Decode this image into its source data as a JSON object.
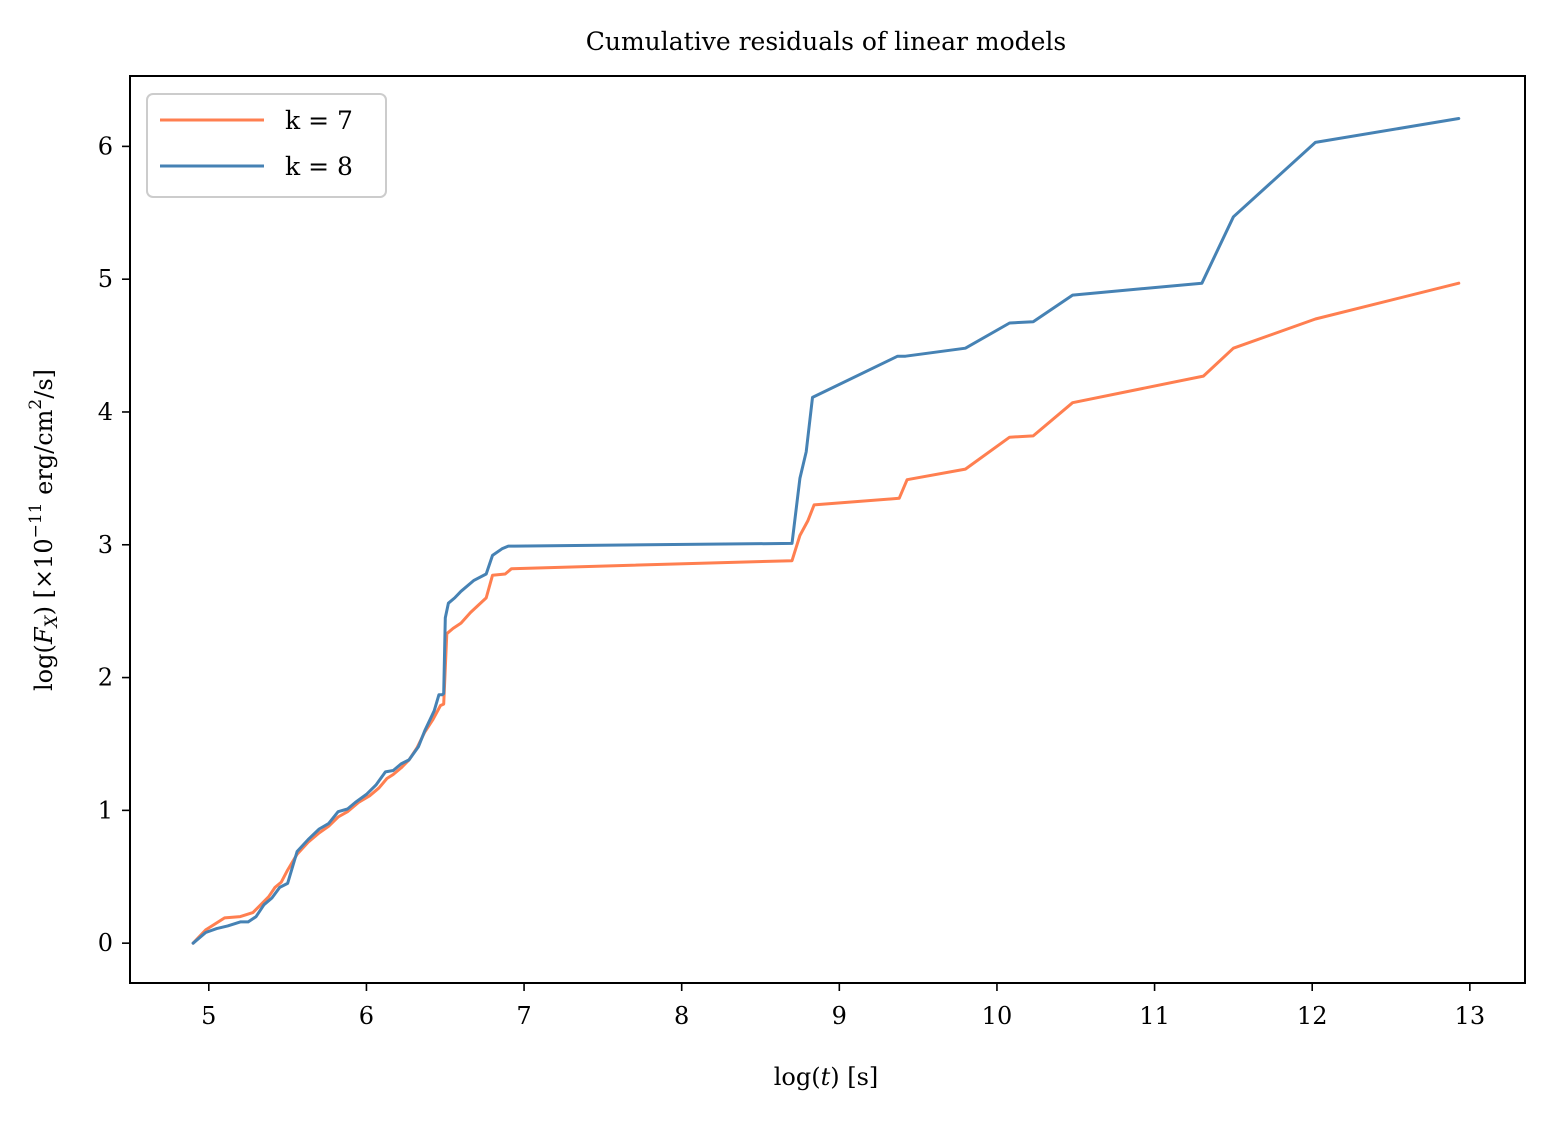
{
  "chart_data": {
    "type": "line",
    "title": "Cumulative residuals of linear models",
    "xlabel": "log(t) [s]",
    "ylabel": "log(F_X) [×10^−11 erg/cm²/s]",
    "ylabel_parts": {
      "p1": "log(",
      "p2": "F",
      "p3": "X",
      "p4": ") [×10",
      "p5": "−11",
      "p6": " erg/cm",
      "p7": "2",
      "p8": "/s]"
    },
    "xlabel_parts": {
      "p1": "log(",
      "p2": "t",
      "p3": ") [s]"
    },
    "xlim": [
      4.5,
      13.35
    ],
    "ylim": [
      -0.3,
      6.53
    ],
    "xticks": [
      5,
      6,
      7,
      8,
      9,
      10,
      11,
      12,
      13
    ],
    "yticks": [
      0,
      1,
      2,
      3,
      4,
      5,
      6
    ],
    "grid": false,
    "legend_position": "top-left",
    "series": [
      {
        "name": "k = 7",
        "color": "#ff7f50",
        "x": [
          4.9,
          4.98,
          5.1,
          5.2,
          5.28,
          5.33,
          5.38,
          5.42,
          5.46,
          5.5,
          5.56,
          5.63,
          5.7,
          5.76,
          5.82,
          5.88,
          5.95,
          6.02,
          6.08,
          6.13,
          6.17,
          6.22,
          6.27,
          6.32,
          6.37,
          6.42,
          6.47,
          6.49,
          6.51,
          6.55,
          6.6,
          6.66,
          6.76,
          6.8,
          6.88,
          6.92,
          8.7,
          8.75,
          8.8,
          8.84,
          9.38,
          9.43,
          9.8,
          10.08,
          10.23,
          10.48,
          11.31,
          11.5,
          12.02,
          12.93
        ],
        "y": [
          0.0,
          0.1,
          0.19,
          0.2,
          0.23,
          0.29,
          0.35,
          0.42,
          0.46,
          0.55,
          0.67,
          0.76,
          0.83,
          0.88,
          0.95,
          0.99,
          1.06,
          1.11,
          1.17,
          1.24,
          1.27,
          1.32,
          1.38,
          1.47,
          1.59,
          1.68,
          1.79,
          1.8,
          2.33,
          2.37,
          2.41,
          2.49,
          2.6,
          2.77,
          2.78,
          2.82,
          2.88,
          3.07,
          3.18,
          3.3,
          3.35,
          3.49,
          3.57,
          3.81,
          3.82,
          4.07,
          4.27,
          4.48,
          4.7,
          4.97
        ]
      },
      {
        "name": "k = 8",
        "color": "#4682b4",
        "x": [
          4.9,
          4.98,
          5.05,
          5.12,
          5.2,
          5.25,
          5.3,
          5.35,
          5.4,
          5.45,
          5.5,
          5.56,
          5.63,
          5.7,
          5.76,
          5.82,
          5.88,
          5.93,
          6.0,
          6.06,
          6.12,
          6.17,
          6.22,
          6.27,
          6.33,
          6.37,
          6.43,
          6.46,
          6.48,
          6.49,
          6.5,
          6.52,
          6.56,
          6.6,
          6.68,
          6.76,
          6.8,
          6.86,
          6.9,
          6.94,
          8.7,
          8.75,
          8.79,
          8.83,
          9.37,
          9.42,
          9.8,
          10.08,
          10.23,
          10.48,
          11.3,
          11.5,
          12.02,
          12.93
        ],
        "y": [
          0.0,
          0.08,
          0.11,
          0.13,
          0.16,
          0.16,
          0.2,
          0.29,
          0.34,
          0.42,
          0.45,
          0.69,
          0.78,
          0.86,
          0.9,
          0.99,
          1.01,
          1.06,
          1.12,
          1.19,
          1.29,
          1.3,
          1.35,
          1.38,
          1.48,
          1.6,
          1.75,
          1.87,
          1.87,
          1.88,
          2.45,
          2.56,
          2.6,
          2.65,
          2.73,
          2.78,
          2.92,
          2.97,
          2.99,
          2.99,
          3.01,
          3.5,
          3.7,
          4.11,
          4.42,
          4.42,
          4.48,
          4.67,
          4.68,
          4.88,
          4.97,
          5.47,
          6.03,
          6.21
        ]
      }
    ]
  }
}
